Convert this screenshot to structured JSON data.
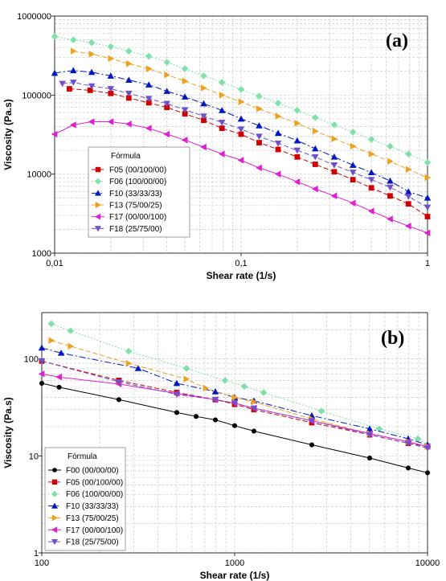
{
  "chart_data": [
    {
      "type": "scatter",
      "panel_label": "(a)",
      "xlabel": "Shear rate (1/s)",
      "ylabel": "Viscosity (Pa.s)",
      "xscale": "log",
      "yscale": "log",
      "xlim": [
        0.01,
        1
      ],
      "ylim": [
        1000,
        1000000
      ],
      "x_ticks": [
        "0,01",
        "0,1",
        "1"
      ],
      "y_ticks": [
        "1000",
        "10000",
        "100000",
        "1000000"
      ],
      "grid": true,
      "legend_title": "Fórmula",
      "legend_position": "lower-left",
      "series": [
        {
          "name": "F05 (00/100/00)",
          "color": "#d00000",
          "marker": "square",
          "dash": "6,3",
          "x": [
            0.012,
            0.0155,
            0.02,
            0.025,
            0.032,
            0.04,
            0.05,
            0.063,
            0.079,
            0.1,
            0.125,
            0.158,
            0.2,
            0.25,
            0.316,
            0.398,
            0.5,
            0.63,
            0.79,
            1.0
          ],
          "y": [
            120000,
            115000,
            105000,
            92000,
            80000,
            70000,
            58000,
            48000,
            38000,
            32000,
            25000,
            20500,
            16500,
            13300,
            10700,
            8500,
            6700,
            5300,
            4200,
            2900
          ]
        },
        {
          "name": "F06 (100/00/00)",
          "color": "#7fe0a8",
          "marker": "diamond",
          "dash": "2,2",
          "x": [
            0.01,
            0.0126,
            0.0158,
            0.02,
            0.025,
            0.032,
            0.04,
            0.05,
            0.063,
            0.079,
            0.1,
            0.125,
            0.158,
            0.2,
            0.25,
            0.316,
            0.398,
            0.5,
            0.63,
            0.79,
            1.0
          ],
          "y": [
            550000,
            500000,
            460000,
            410000,
            360000,
            310000,
            260000,
            215000,
            175000,
            145000,
            118000,
            97000,
            79000,
            64000,
            52000,
            42000,
            34000,
            27500,
            22500,
            18000,
            14000
          ]
        },
        {
          "name": "F10 (33/33/33)",
          "color": "#0018c0",
          "marker": "triangle-up",
          "dash": "8,3,2,3",
          "x": [
            0.01,
            0.0126,
            0.0158,
            0.02,
            0.025,
            0.032,
            0.04,
            0.05,
            0.063,
            0.079,
            0.1,
            0.125,
            0.158,
            0.2,
            0.25,
            0.316,
            0.398,
            0.5,
            0.63,
            0.79,
            1.0
          ],
          "y": [
            190000,
            205000,
            195000,
            175000,
            155000,
            135000,
            112000,
            95000,
            78000,
            64000,
            50000,
            41000,
            33000,
            26500,
            21000,
            16500,
            13000,
            10500,
            8200,
            6000,
            5000
          ]
        },
        {
          "name": "F13 (75/00/25)",
          "color": "#f0a020",
          "marker": "triangle-right",
          "dash": "6,3",
          "x": [
            0.0126,
            0.0158,
            0.02,
            0.025,
            0.032,
            0.04,
            0.05,
            0.063,
            0.079,
            0.1,
            0.125,
            0.158,
            0.2,
            0.25,
            0.316,
            0.398,
            0.5,
            0.63,
            0.79,
            1.0
          ],
          "y": [
            360000,
            330000,
            290000,
            250000,
            215000,
            180000,
            150000,
            123000,
            100000,
            82000,
            67000,
            54000,
            44000,
            35000,
            28000,
            22500,
            18000,
            14500,
            11500,
            9000
          ]
        },
        {
          "name": "F17 (00/00/100)",
          "color": "#e020d0",
          "marker": "triangle-left",
          "dash": "",
          "x": [
            0.01,
            0.0126,
            0.0158,
            0.02,
            0.025,
            0.032,
            0.04,
            0.05,
            0.063,
            0.079,
            0.1,
            0.125,
            0.158,
            0.2,
            0.25,
            0.316,
            0.398,
            0.5,
            0.63,
            0.79,
            1.0
          ],
          "y": [
            32000,
            42000,
            46000,
            46000,
            43000,
            38000,
            32000,
            27000,
            22000,
            18000,
            15000,
            12000,
            10000,
            8000,
            6500,
            5300,
            4300,
            3400,
            2700,
            2200,
            1800
          ]
        },
        {
          "name": "F18 (25/75/00)",
          "color": "#7050c8",
          "marker": "triangle-down",
          "dash": "6,3",
          "x": [
            0.011,
            0.0126,
            0.0158,
            0.02,
            0.025,
            0.032,
            0.04,
            0.05,
            0.063,
            0.079,
            0.1,
            0.125,
            0.158,
            0.2,
            0.25,
            0.316,
            0.398,
            0.5,
            0.63,
            0.79,
            1.0
          ],
          "y": [
            140000,
            145000,
            130000,
            120000,
            105000,
            90000,
            78000,
            65000,
            54000,
            45000,
            37000,
            30000,
            24500,
            20000,
            16500,
            13000,
            10500,
            8500,
            6800,
            5200,
            3800
          ]
        }
      ]
    },
    {
      "type": "scatter",
      "panel_label": "(b)",
      "xlabel": "Shear rate (1/s)",
      "ylabel": "Viscosity (Pa.s)",
      "xscale": "log",
      "yscale": "log",
      "xlim": [
        100,
        10000
      ],
      "ylim": [
        1,
        300
      ],
      "x_ticks": [
        "100",
        "1000",
        "10000"
      ],
      "y_ticks": [
        "1",
        "10",
        "100"
      ],
      "grid": true,
      "legend_title": "Fórmula",
      "legend_position": "lower-left",
      "series": [
        {
          "name": "F00 (00/00/00)",
          "color": "#000000",
          "marker": "circle",
          "dash": "",
          "x": [
            100,
            123,
            251,
            501,
            631,
            794,
            1000,
            1259,
            2512,
            5012,
            7943,
            10000
          ],
          "y": [
            56,
            51,
            38,
            28,
            25.5,
            23.5,
            20.5,
            18,
            13,
            9.5,
            7.5,
            6.7
          ]
        },
        {
          "name": "F05 (00/100/00)",
          "color": "#d00000",
          "marker": "square",
          "dash": "6,3",
          "x": [
            100,
            251,
            501,
            794,
            1000,
            1259,
            2512,
            5012,
            7943,
            10000
          ],
          "y": [
            95,
            60,
            45,
            38,
            34,
            30,
            22,
            16.5,
            13.5,
            12.5
          ]
        },
        {
          "name": "F06 (100/00/00)",
          "color": "#7fe0a8",
          "marker": "diamond",
          "dash": "2,2",
          "x": [
            112,
            141,
            282,
            562,
            891,
            1122,
            1413,
            2818,
            5623,
            8913,
            10000
          ],
          "y": [
            230,
            195,
            120,
            80,
            60,
            52,
            45,
            29,
            19,
            15,
            13
          ]
        },
        {
          "name": "F10 (33/33/33)",
          "color": "#0018c0",
          "marker": "triangle-up",
          "dash": "8,3,2,3",
          "x": [
            100,
            126,
            316,
            501,
            794,
            1000,
            1259,
            2512,
            5012,
            7943,
            10000
          ],
          "y": [
            130,
            115,
            80,
            56,
            46,
            40,
            37,
            26,
            19,
            15,
            13
          ]
        },
        {
          "name": "F13 (75/00/25)",
          "color": "#f0a020",
          "marker": "triangle-right",
          "dash": "6,3",
          "x": [
            112,
            141,
            282,
            562,
            708,
            1000,
            1259,
            2512,
            5012,
            7943,
            10000
          ],
          "y": [
            155,
            135,
            90,
            62,
            50,
            40,
            36,
            24,
            17,
            14,
            12.5
          ]
        },
        {
          "name": "F17 (00/00/100)",
          "color": "#e020d0",
          "marker": "triangle-left",
          "dash": "",
          "x": [
            100,
            123,
            251,
            501,
            794,
            1000,
            1259,
            2512,
            5012,
            7943,
            10000
          ],
          "y": [
            70,
            65,
            55,
            44,
            38,
            35,
            31,
            23,
            17,
            14,
            12.5
          ]
        },
        {
          "name": "F18 (25/75/00)",
          "color": "#7050c8",
          "marker": "triangle-down",
          "dash": "6,3",
          "x": [
            100,
            251,
            501,
            794,
            1000,
            1259,
            2512,
            5012,
            7943,
            10000
          ],
          "y": [
            95,
            58,
            43,
            38,
            35,
            31,
            23,
            16.5,
            13.5,
            12
          ]
        }
      ]
    }
  ]
}
